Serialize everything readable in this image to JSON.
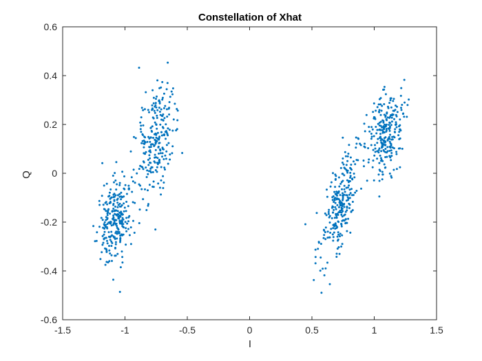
{
  "chart_data": {
    "type": "scatter",
    "title": "Constellation of Xhat",
    "xlabel": "I",
    "ylabel": "Q",
    "xlim": [
      -1.5,
      1.5
    ],
    "ylim": [
      -0.6,
      0.6
    ],
    "xticks": [
      -1.5,
      -1,
      -0.5,
      0,
      0.5,
      1,
      1.5
    ],
    "xtick_labels": [
      "-1.5",
      "-1",
      "-0.5",
      "0",
      "0.5",
      "1",
      "1.5"
    ],
    "yticks": [
      -0.6,
      -0.4,
      -0.2,
      0,
      0.2,
      0.4,
      0.6
    ],
    "ytick_labels": [
      "-0.6",
      "-0.4",
      "-0.2",
      "0",
      "0.2",
      "0.4",
      "0.6"
    ],
    "grid": false,
    "marker_color": "#0072BD",
    "series": [
      {
        "clusters": [
          {
            "cx": -1.08,
            "cy": -0.19,
            "sx": 0.065,
            "sy": 0.085,
            "n": 260,
            "tilt": 0.12
          },
          {
            "cx": -0.76,
            "cy": 0.14,
            "sx": 0.07,
            "sy": 0.13,
            "n": 260,
            "tilt": 0.18
          },
          {
            "cx": 0.72,
            "cy": -0.14,
            "sx": 0.06,
            "sy": 0.12,
            "n": 260,
            "tilt": 0.45
          },
          {
            "cx": 1.09,
            "cy": 0.16,
            "sx": 0.07,
            "sy": 0.085,
            "n": 260,
            "tilt": 0.3
          }
        ]
      }
    ]
  }
}
